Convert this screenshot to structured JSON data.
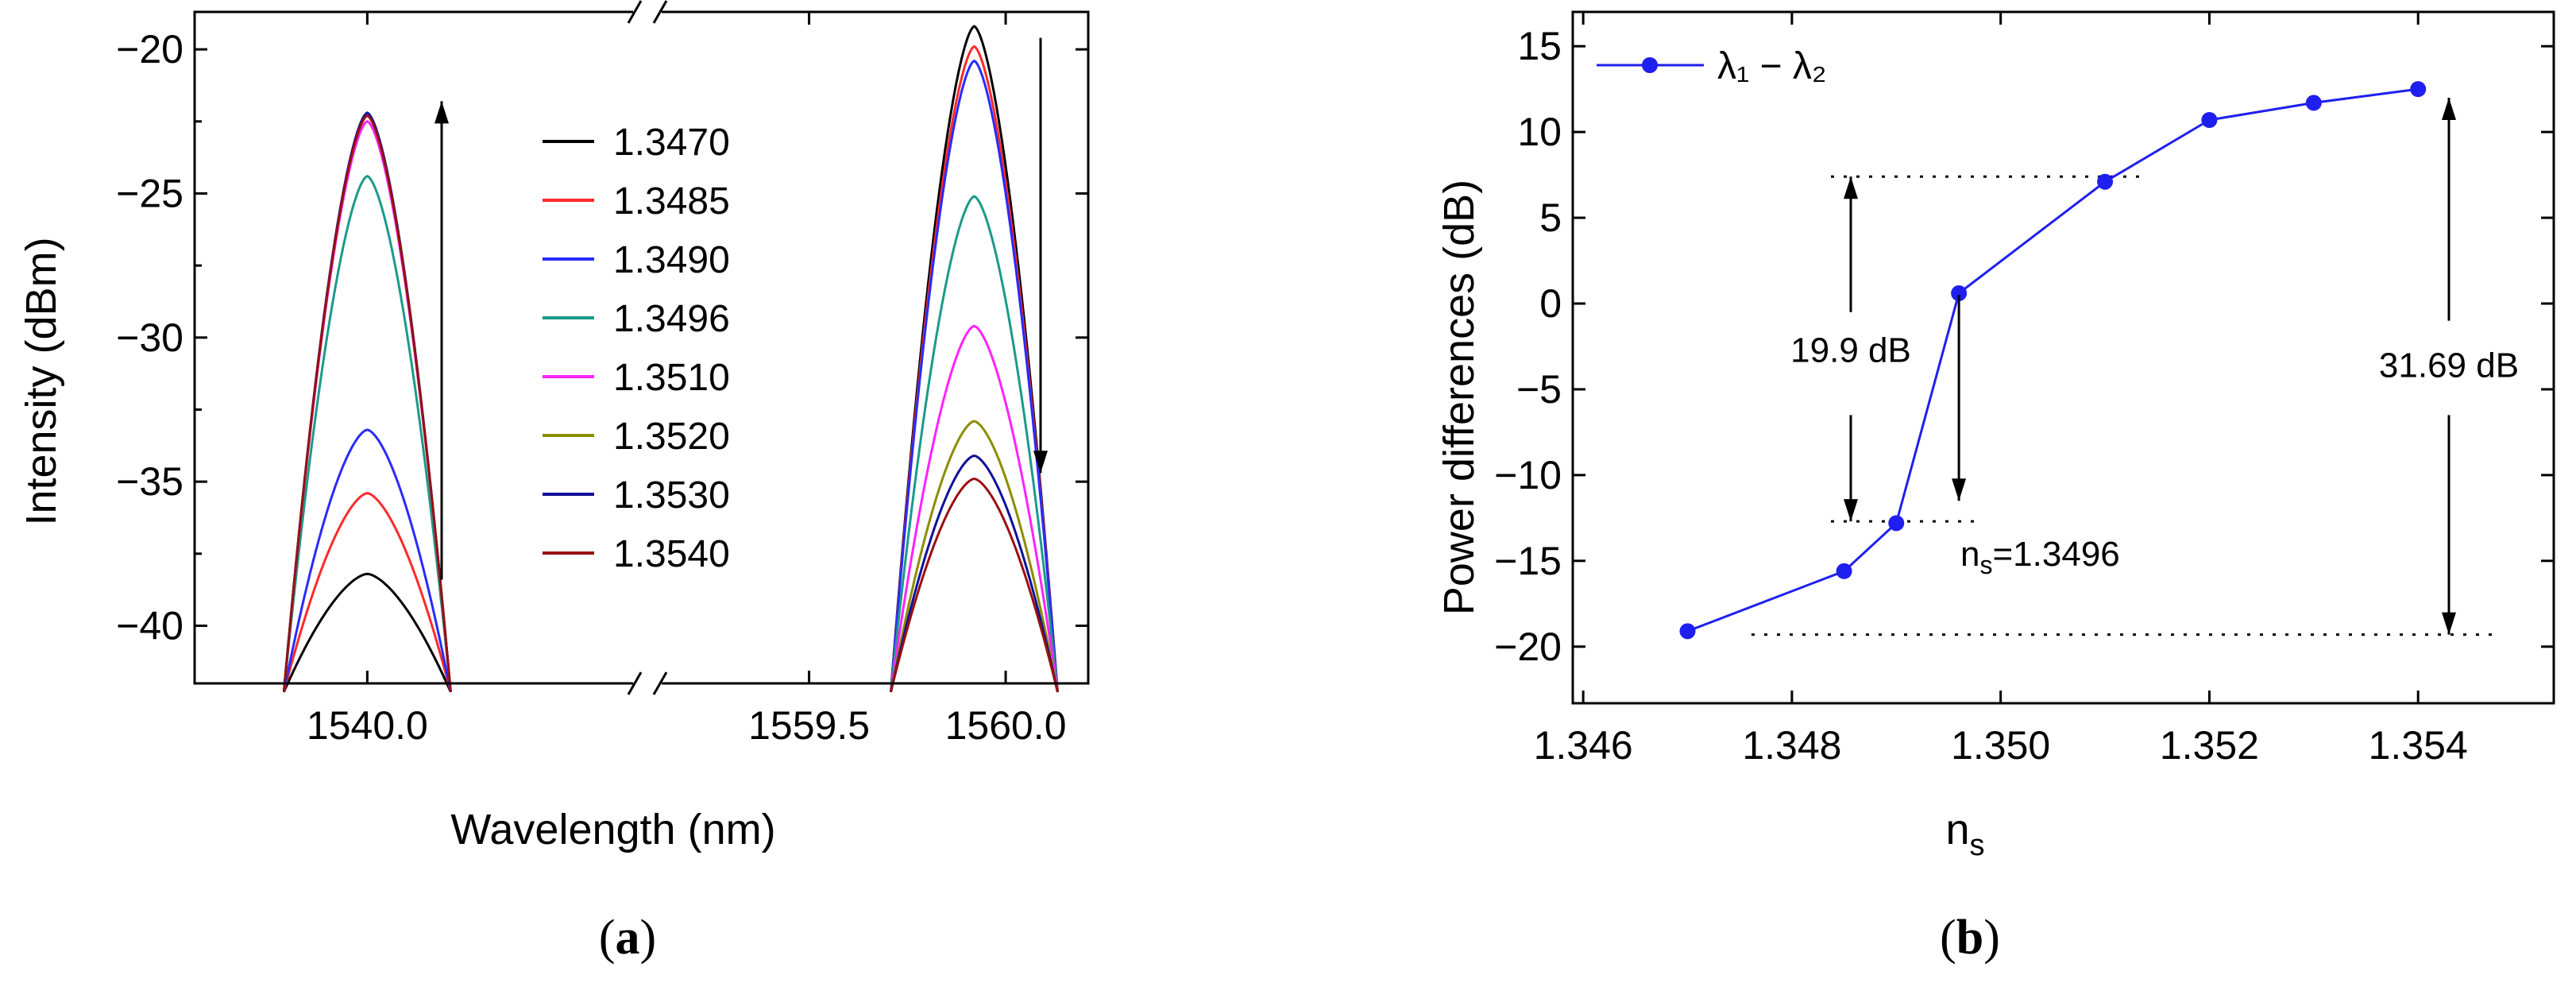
{
  "chart_data": [
    {
      "type": "line",
      "panel_label_open": "(",
      "panel_label": "a",
      "panel_label_close": ")",
      "xlabel": "Wavelength (nm)",
      "ylabel": "Intensity (dBm)",
      "ylim": [
        -42,
        -18.7
      ],
      "yticks": [
        -40,
        -35,
        -30,
        -25,
        -20
      ],
      "ytick_labels": [
        "−40",
        "−35",
        "−30",
        "−25",
        "−20"
      ],
      "xlim_left": [
        1539.78,
        1540.2
      ],
      "xlim_right": [
        1559.22,
        1560.21
      ],
      "xticks": [
        1540.0,
        1559.5,
        1560.0
      ],
      "xtick_labels": [
        "1540.0",
        "1559.5",
        "1560.0"
      ],
      "break_x": 1540.27,
      "arrow_left": {
        "direction": "up",
        "from": -38.4,
        "to": -21.8
      },
      "arrow_right": {
        "direction": "down",
        "from": -19.6,
        "to": -34.7
      },
      "series": [
        {
          "name": "1.3470",
          "color": "#000000",
          "peak1": -38.2,
          "peak2": -19.2
        },
        {
          "name": "1.3485",
          "color": "#ff2a2a",
          "peak1": -35.4,
          "peak2": -19.9
        },
        {
          "name": "1.3490",
          "color": "#2a2aff",
          "peak1": -33.2,
          "peak2": -20.4
        },
        {
          "name": "1.3496",
          "color": "#1a9a8a",
          "peak1": -24.4,
          "peak2": -25.1
        },
        {
          "name": "1.3510",
          "color": "#ff22ff",
          "peak1": -22.5,
          "peak2": -29.6
        },
        {
          "name": "1.3520",
          "color": "#8c8c00",
          "peak1": -22.3,
          "peak2": -32.9
        },
        {
          "name": "1.3530",
          "color": "#101099",
          "peak1": -22.2,
          "peak2": -34.1
        },
        {
          "name": "1.3540",
          "color": "#991010",
          "peak1": -22.3,
          "peak2": -34.9
        }
      ]
    },
    {
      "type": "line",
      "panel_label_open": "(",
      "panel_label": "b",
      "panel_label_close": ")",
      "xlabel": "n",
      "xlabel_sub": "s",
      "ylabel": "Power differences (dB)",
      "xlim": [
        1.3459,
        1.3553
      ],
      "ylim": [
        -23.3,
        17.0
      ],
      "xticks": [
        1.346,
        1.348,
        1.35,
        1.352,
        1.354
      ],
      "xtick_labels": [
        "1.346",
        "1.348",
        "1.350",
        "1.352",
        "1.354"
      ],
      "yticks": [
        -20,
        -15,
        -10,
        -5,
        0,
        5,
        10,
        15
      ],
      "ytick_labels": [
        "−20",
        "−15",
        "−10",
        "−5",
        "0",
        "5",
        "10",
        "15"
      ],
      "series": [
        {
          "name": "λ₁ − λ₂",
          "color": "#1f1fef",
          "x": [
            1.347,
            1.3485,
            1.349,
            1.3496,
            1.351,
            1.352,
            1.353,
            1.354
          ],
          "y": [
            -19.1,
            -15.6,
            -12.8,
            0.6,
            7.1,
            10.7,
            11.7,
            12.5
          ]
        }
      ],
      "annotations": {
        "label_19": "19.9 dB",
        "label_31": "31.69 dB",
        "label_ns_main": "n",
        "label_ns_sub": "s",
        "label_ns_value": "=1.3496",
        "level_top": 7.4,
        "level_mid": -12.7,
        "level_bottom": -19.3,
        "arrow_ns": {
          "x": 1.3496,
          "from": 0.5,
          "to": -11.5
        }
      }
    }
  ]
}
